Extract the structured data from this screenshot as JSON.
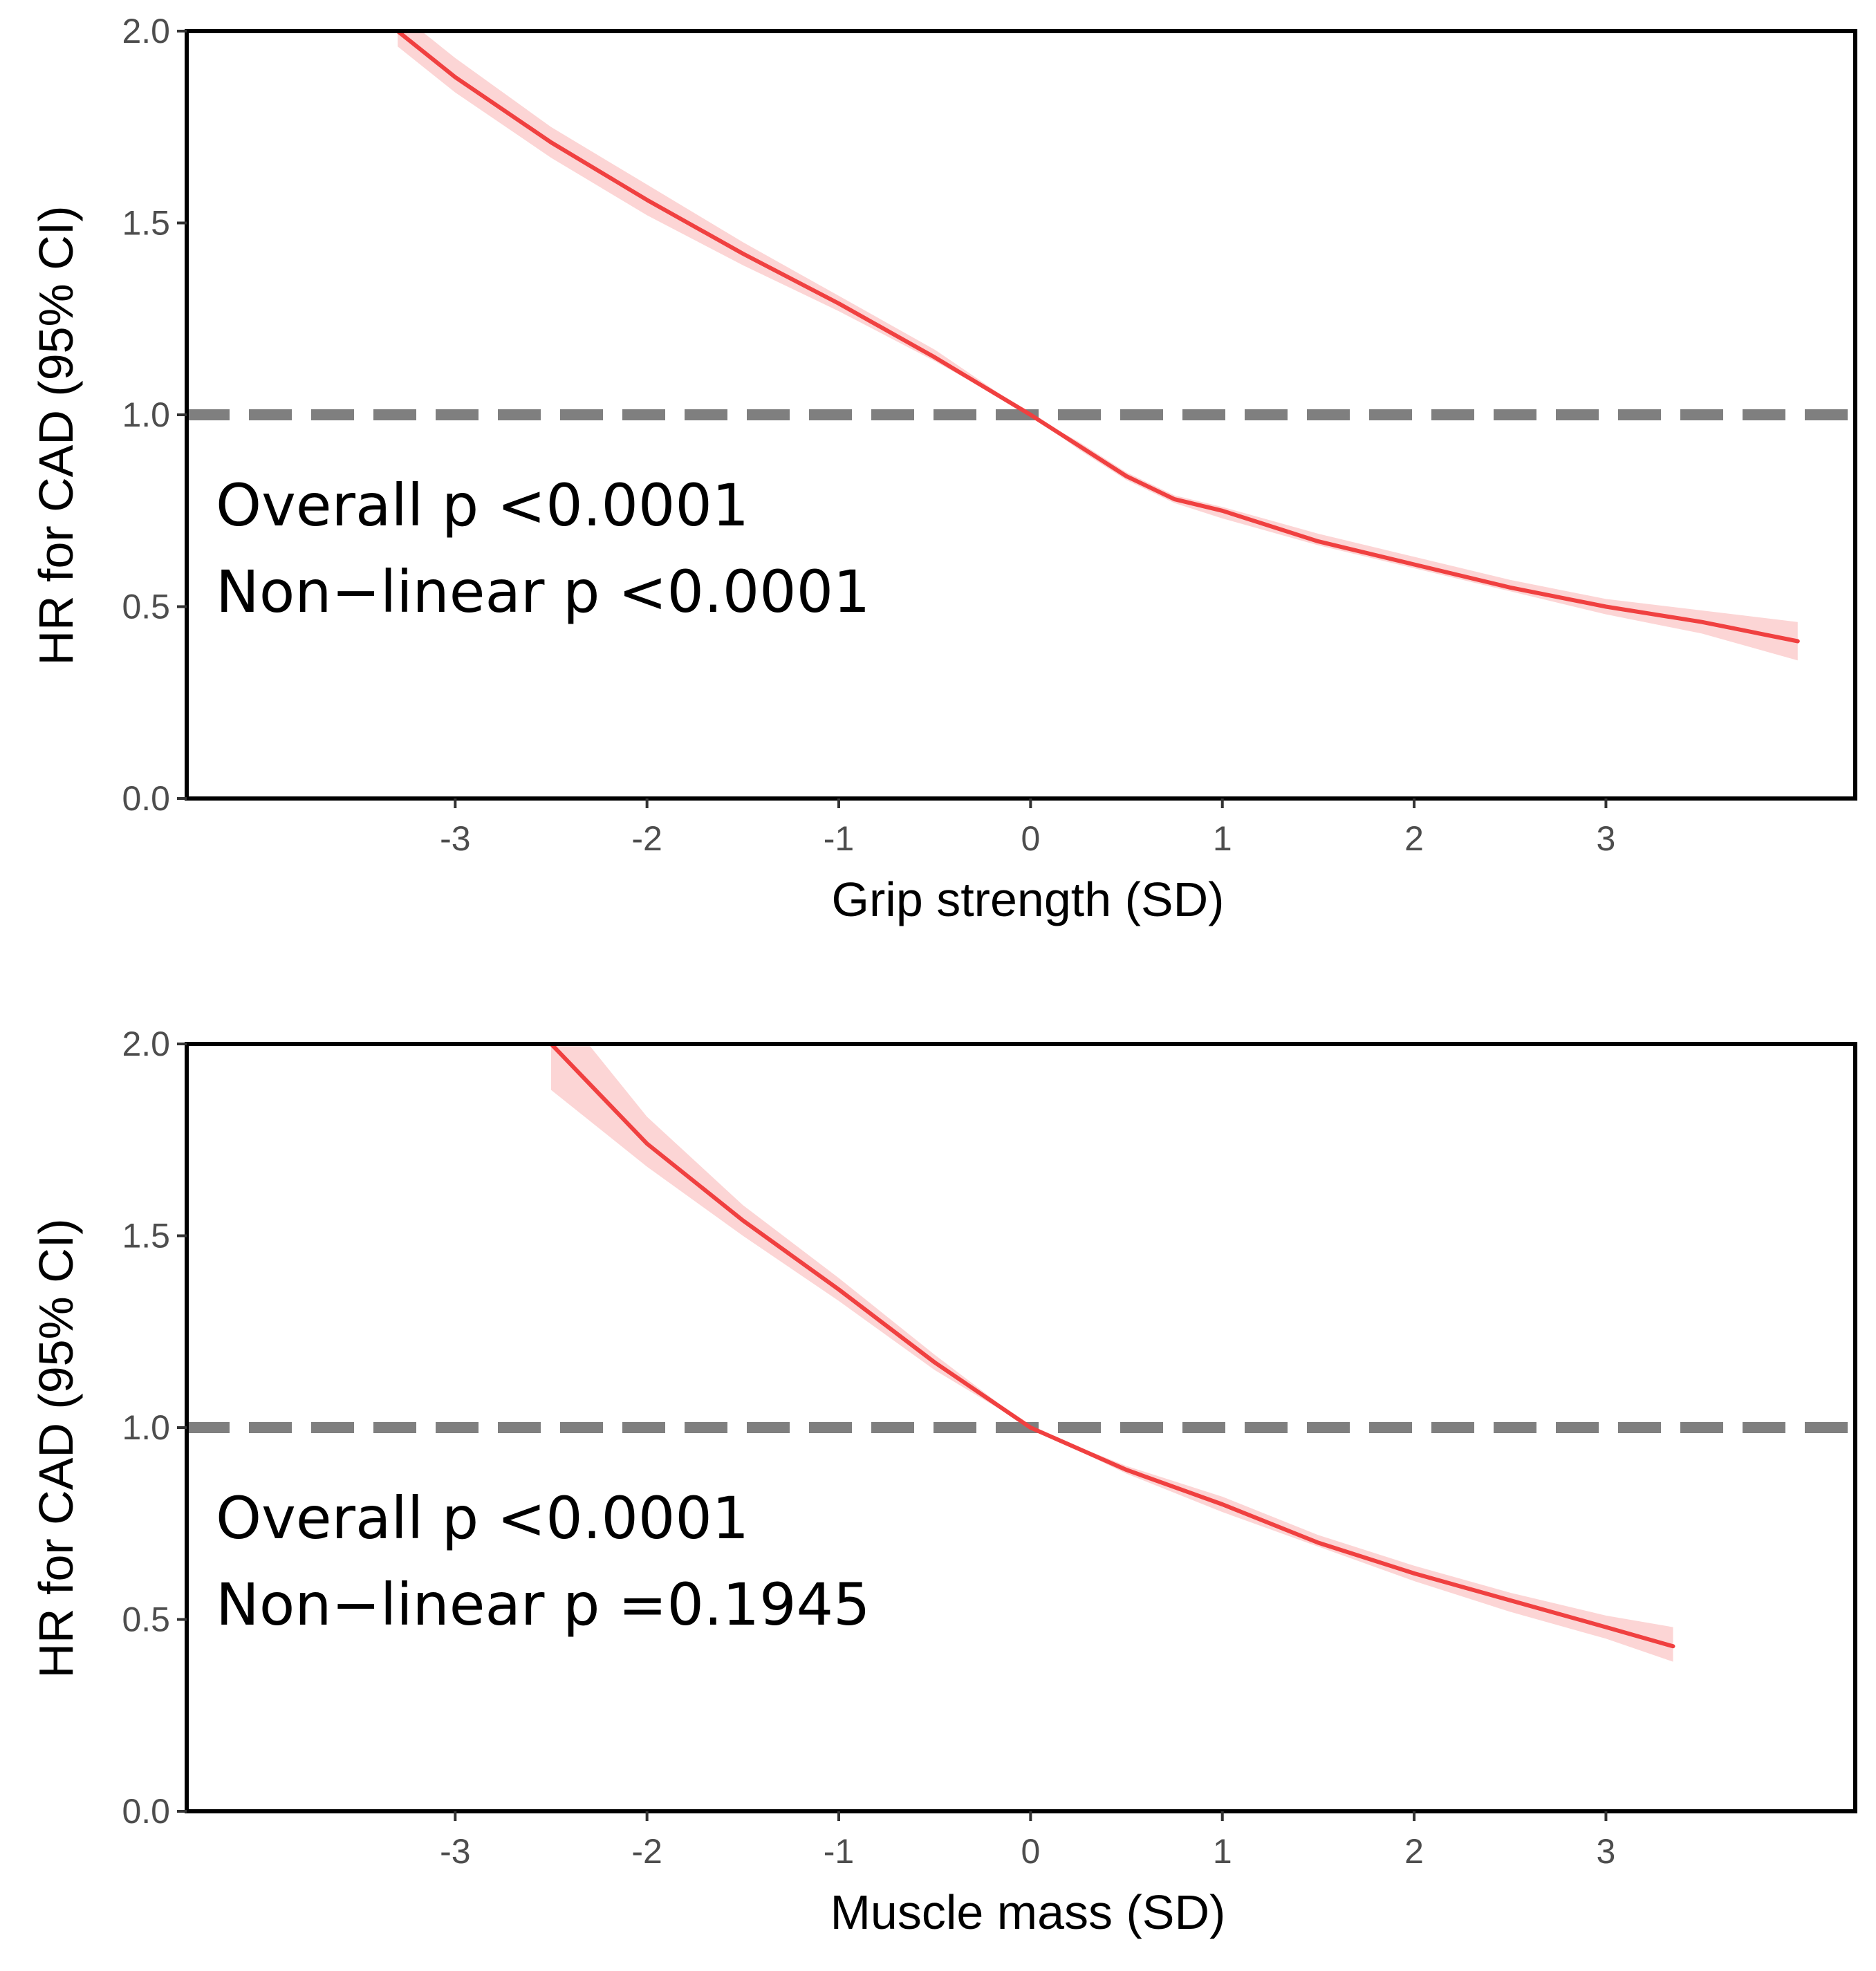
{
  "chart_data": [
    {
      "type": "line",
      "title": "",
      "xlabel": "Grip strength (SD)",
      "ylabel": "HR for CAD (95% CI)",
      "xlim": [
        -4.4,
        4.3
      ],
      "ylim": [
        0,
        2
      ],
      "x_ticks": [
        "-3",
        "-2",
        "-1",
        "0",
        "1",
        "2",
        "3"
      ],
      "y_ticks": [
        "0.0",
        "0.5",
        "1.0",
        "1.5",
        "2.0"
      ],
      "reference_line": {
        "y": 1.0,
        "style": "dashed",
        "color": "#7f7f7f"
      },
      "annotations": [
        "Overall p <0.0001",
        "Non−linear p <0.0001"
      ],
      "colors": {
        "line": "#f04040",
        "ci_band": "#fcd5d5",
        "frame": "#000000"
      },
      "series": [
        {
          "name": "HR",
          "x": [
            -3.3,
            -3.0,
            -2.5,
            -2.0,
            -1.5,
            -1.0,
            -0.5,
            0.0,
            0.25,
            0.5,
            0.75,
            1.0,
            1.5,
            2.0,
            2.5,
            3.0,
            3.5,
            4.0
          ],
          "y": [
            2.0,
            1.88,
            1.71,
            1.56,
            1.42,
            1.29,
            1.15,
            1.0,
            0.92,
            0.84,
            0.78,
            0.75,
            0.67,
            0.61,
            0.55,
            0.5,
            0.46,
            0.41
          ],
          "ci_lower": [
            1.96,
            1.84,
            1.67,
            1.52,
            1.39,
            1.27,
            1.14,
            1.0,
            0.91,
            0.83,
            0.77,
            0.73,
            0.66,
            0.6,
            0.54,
            0.48,
            0.43,
            0.36
          ],
          "ci_upper": [
            2.05,
            1.93,
            1.75,
            1.6,
            1.45,
            1.31,
            1.17,
            1.0,
            0.93,
            0.85,
            0.79,
            0.76,
            0.69,
            0.63,
            0.57,
            0.52,
            0.49,
            0.46
          ]
        }
      ]
    },
    {
      "type": "line",
      "title": "",
      "xlabel": "Muscle mass (SD)",
      "ylabel": "HR for CAD (95% CI)",
      "xlim": [
        -4.4,
        4.3
      ],
      "ylim": [
        0,
        2
      ],
      "x_ticks": [
        "-3",
        "-2",
        "-1",
        "0",
        "1",
        "2",
        "3"
      ],
      "y_ticks": [
        "0.0",
        "0.5",
        "1.0",
        "1.5",
        "2.0"
      ],
      "reference_line": {
        "y": 1.0,
        "style": "dashed",
        "color": "#7f7f7f"
      },
      "annotations": [
        "Overall p <0.0001",
        "Non−linear p =0.1945"
      ],
      "colors": {
        "line": "#f04040",
        "ci_band": "#fcd5d5",
        "frame": "#000000"
      },
      "series": [
        {
          "name": "HR",
          "x": [
            -2.5,
            -2.0,
            -1.5,
            -1.0,
            -0.5,
            0.0,
            0.5,
            1.0,
            1.5,
            2.0,
            2.5,
            3.0,
            3.35
          ],
          "y": [
            2.0,
            1.74,
            1.54,
            1.36,
            1.17,
            1.0,
            0.89,
            0.8,
            0.7,
            0.62,
            0.55,
            0.48,
            0.43
          ],
          "ci_lower": [
            1.88,
            1.68,
            1.5,
            1.33,
            1.15,
            1.0,
            0.88,
            0.78,
            0.69,
            0.6,
            0.52,
            0.45,
            0.39
          ],
          "ci_upper": [
            2.12,
            1.81,
            1.58,
            1.39,
            1.19,
            1.0,
            0.9,
            0.82,
            0.72,
            0.64,
            0.57,
            0.51,
            0.48
          ]
        }
      ]
    }
  ]
}
